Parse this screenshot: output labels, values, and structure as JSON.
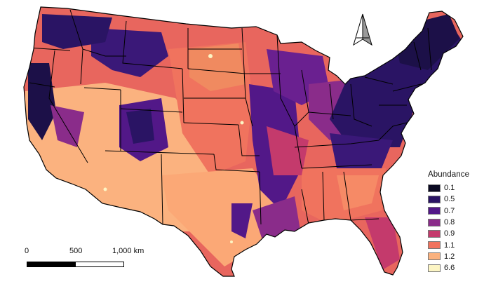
{
  "legend": {
    "title": "Abundance",
    "items": [
      {
        "label": "0.1",
        "color": "#0b0a22"
      },
      {
        "label": "0.5",
        "color": "#2a1464"
      },
      {
        "label": "0.7",
        "color": "#521888"
      },
      {
        "label": "0.8",
        "color": "#8a2c8a"
      },
      {
        "label": "0.9",
        "color": "#c43a6c"
      },
      {
        "label": "1.1",
        "color": "#f0735e"
      },
      {
        "label": "1.2",
        "color": "#fbb27f"
      },
      {
        "label": "6.6",
        "color": "#fcf5c4"
      }
    ]
  },
  "scale_bar": {
    "labels": [
      "0",
      "500",
      "1,000 km"
    ],
    "segment_colors": [
      "#000000",
      "#ffffff"
    ]
  },
  "north_arrow": {
    "icon": "north-arrow-icon"
  },
  "colors": {
    "state_border": "#000000",
    "background": "#ffffff"
  }
}
